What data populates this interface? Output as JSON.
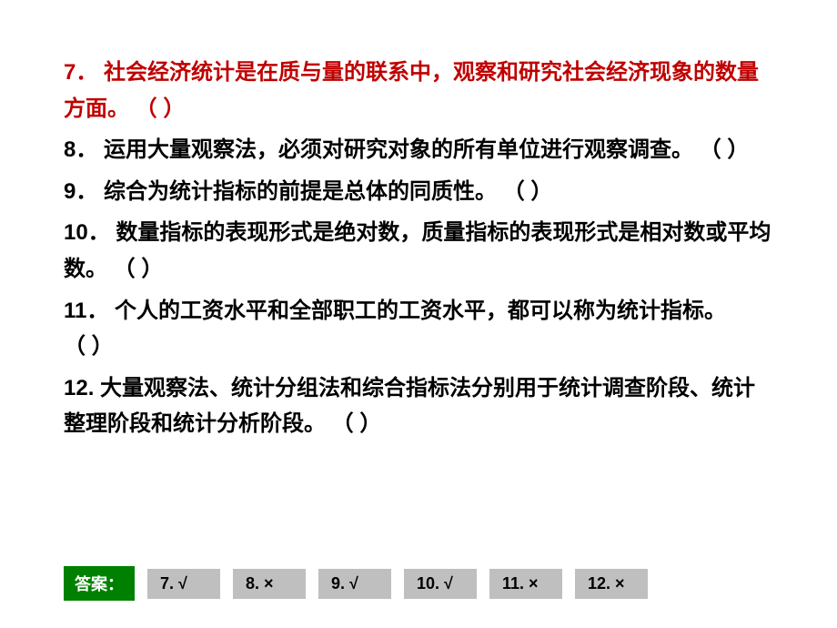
{
  "questions": [
    {
      "num": "7．",
      "text": "社会经济统计是在质与量的联系中，观察和研究社会经济现象的数量方面。",
      "blank": "（ ）",
      "highlight": true
    },
    {
      "num": "8．",
      "text": "运用大量观察法，必须对研究对象的所有单位进行观察调查。",
      "blank": "（ ）",
      "highlight": false
    },
    {
      "num": "9．",
      "text": "综合为统计指标的前提是总体的同质性。",
      "blank": "（ ）",
      "highlight": false
    },
    {
      "num": "10．",
      "text": "数量指标的表现形式是绝对数，质量指标的表现形式是相对数或平均数。",
      "blank": "（ ）",
      "highlight": false
    },
    {
      "num": "11．",
      "text": "个人的工资水平和全部职工的工资水平，都可以称为统计指标。",
      "blank": "  （ ）",
      "highlight": false
    },
    {
      "num": "12.",
      "text": "大量观察法、统计分组法和综合指标法分别用于统计调查阶段、统计整理阶段和统计分析阶段。",
      "blank": "  （ ）",
      "highlight": false
    }
  ],
  "answerLabel": "答案：",
  "answers": [
    "7. √",
    "8. ×",
    "9. √",
    "10. √",
    "11. ×",
    "12. ×"
  ],
  "colors": {
    "highlight": "#c00000",
    "text": "#000000",
    "answerLabelBg": "#008000",
    "answerLabelFg": "#ffffff",
    "answerBoxBg": "#bfbfbf",
    "background": "#ffffff"
  },
  "typography": {
    "questionFontSize": 24,
    "questionLineHeight": 1.65,
    "footerFontSize": 18,
    "fontWeight": 600
  }
}
